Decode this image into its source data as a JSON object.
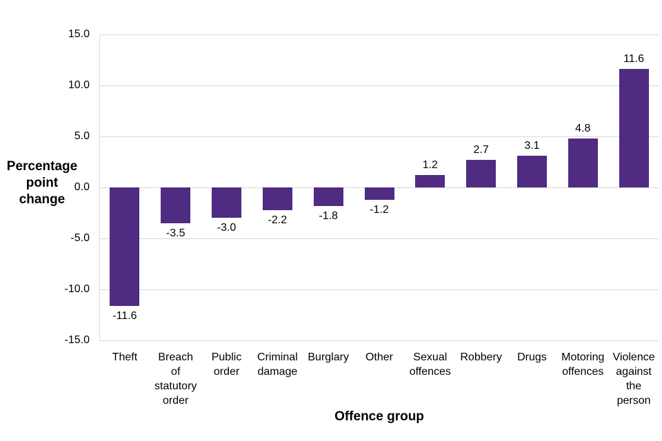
{
  "chart_data": {
    "type": "bar",
    "title": "",
    "xlabel": "Offence group",
    "ylabel": "Percentage point change",
    "categories": [
      "Theft",
      "Breach of statutory order",
      "Public order",
      "Criminal damage",
      "Burglary",
      "Other",
      "Sexual offences",
      "Robbery",
      "Drugs",
      "Motoring offences",
      "Violence against the person"
    ],
    "category_labels_wrapped": [
      "Theft",
      "Breach\nof\nstatutory\norder",
      "Public\norder",
      "Criminal\ndamage",
      "Burglary",
      "Other",
      "Sexual\noffences",
      "Robbery",
      "Drugs",
      "Motoring\noffences",
      "Violence\nagainst\nthe\nperson"
    ],
    "values": [
      -11.6,
      -3.5,
      -3.0,
      -2.2,
      -1.8,
      -1.2,
      1.2,
      2.7,
      3.1,
      4.8,
      11.6
    ],
    "value_labels": [
      "-11.6",
      "-3.5",
      "-3.0",
      "-2.2",
      "-1.8",
      "-1.2",
      "1.2",
      "2.7",
      "3.1",
      "4.8",
      "11.6"
    ],
    "ylim": [
      -15,
      15
    ],
    "yticks": [
      15,
      10,
      5,
      0,
      -5,
      -10,
      -15
    ],
    "ytick_labels": [
      "15.0",
      "10.0",
      "5.0",
      "0.0",
      "-5.0",
      "-10.0",
      "-15.0"
    ],
    "grid": true,
    "legend": false,
    "colors": {
      "bar": "#4f2b82",
      "gridline": "#d9d9d9",
      "axis_line": "#d9d9d9",
      "text": "#000000",
      "background": "#ffffff"
    }
  }
}
